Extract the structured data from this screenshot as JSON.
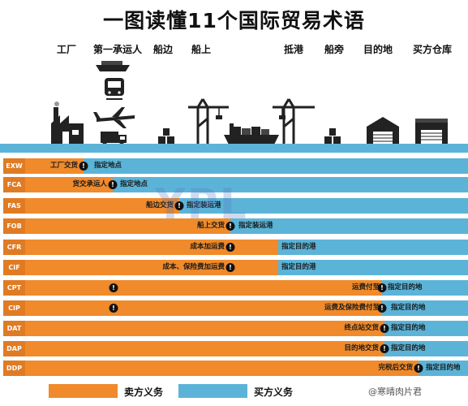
{
  "title": "一图读懂11个国际贸易术语",
  "columns": [
    "工厂",
    "第一承运人",
    "船边",
    "船上",
    "抵港",
    "船旁",
    "目的地",
    "买方仓库"
  ],
  "colors": {
    "seller": "#f08a2a",
    "buyer": "#5bb4d8",
    "code_bg": "#e07b24"
  },
  "terms": [
    {
      "code": "EXW",
      "point_label": "工厂交货",
      "dest_label": "指定地点"
    },
    {
      "code": "FCA",
      "point_label": "货交承运人",
      "dest_label": "指定地点"
    },
    {
      "code": "FAS",
      "point_label": "船边交货",
      "dest_label": "指定装运港"
    },
    {
      "code": "FOB",
      "point_label": "船上交货",
      "dest_label": "指定装运港"
    },
    {
      "code": "CFR",
      "point_label": "成本加运费",
      "dest_label": "指定目的港"
    },
    {
      "code": "CIF",
      "point_label": "成本、保险费加运费",
      "dest_label": "指定目的港"
    },
    {
      "code": "CPT",
      "point_label": "运费付至",
      "dest_label": "指定目的地"
    },
    {
      "code": "CIP",
      "point_label": "运费及保险费付至",
      "dest_label": "指定目的地"
    },
    {
      "code": "DAT",
      "point_label": "终点站交货",
      "dest_label": "指定目的地"
    },
    {
      "code": "DAP",
      "point_label": "目的地交货",
      "dest_label": "指定目的地"
    },
    {
      "code": "DDP",
      "point_label": "完税后交货",
      "dest_label": "指定目的地"
    }
  ],
  "legend": {
    "seller": "卖方义务",
    "buyer": "买方义务"
  },
  "watermark": "YPL",
  "credit": "@寒晴肉片君"
}
